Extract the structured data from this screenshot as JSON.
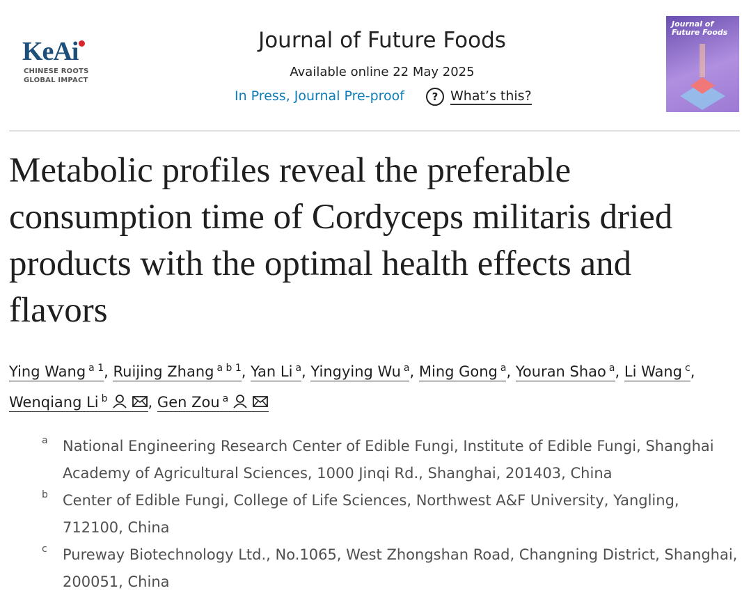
{
  "header": {
    "publisher_logo": {
      "name": "KeAi",
      "tagline_1": "CHINESE ROOTS",
      "tagline_2": "GLOBAL IMPACT"
    },
    "journal": "Journal of Future Foods",
    "available": "Available online 22 May 2025",
    "status": "In Press, Journal Pre-proof",
    "help_icon": "?",
    "help": "What’s this?",
    "cover": {
      "title_1": "Journal of",
      "title_2": "Future Foods"
    }
  },
  "article": {
    "title": "Metabolic profiles reveal the preferable consumption time of Cordyceps militaris dried products with the optimal health effects and flavors",
    "author_separator": ",",
    "authors": [
      {
        "name": "Ying Wang",
        "sup": "a 1"
      },
      {
        "name": "Ruijing Zhang",
        "sup": "a b 1"
      },
      {
        "name": "Yan Li",
        "sup": "a"
      },
      {
        "name": "Yingying Wu",
        "sup": "a"
      },
      {
        "name": "Ming Gong",
        "sup": "a"
      },
      {
        "name": "Youran Shao",
        "sup": "a"
      },
      {
        "name": "Li Wang",
        "sup": "c"
      },
      {
        "name": "Wenqiang Li",
        "sup": "b",
        "corresponding": true
      },
      {
        "name": "Gen Zou",
        "sup": "a",
        "corresponding": true
      }
    ],
    "affiliations": [
      {
        "label": "a",
        "text": "National Engineering Research Center of Edible Fungi, Institute of Edible Fungi, Shanghai Academy of Agricultural Sciences, 1000 Jinqi Rd., Shanghai, 201403, China"
      },
      {
        "label": "b",
        "text": "Center of Edible Fungi, College of Life Sciences, Northwest A&F University, Yangling, 712100, China"
      },
      {
        "label": "c",
        "text": "Pureway Biotechnology Ltd., No.1065, West Zhongshan Road, Changning District, Shanghai, 200051, China"
      }
    ]
  }
}
